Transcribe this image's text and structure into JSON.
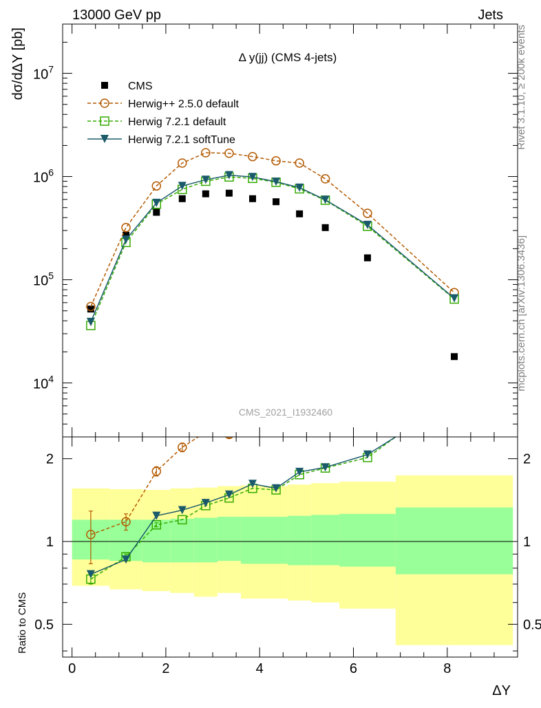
{
  "header": {
    "left_label": "13000 GeV pp",
    "right_label": "Jets"
  },
  "side_labels": {
    "rivet": "Rivet 3.1.10, ≥ 200k events",
    "source": "mcplots.cern.ch [arXiv:1306.3436]"
  },
  "chart_data": [
    {
      "type": "scatter",
      "panel": "main",
      "title": "Δ y(jj) (CMS 4-jets)",
      "watermark": "CMS_2021_I1932460",
      "ylabel": "dσ/dΔY [pb]",
      "xlabel": "",
      "yscale": "log",
      "xlim": [
        -0.2,
        9.5
      ],
      "ylim": [
        3000,
        30000000
      ],
      "y_ticks": [
        {
          "value": 10000,
          "base": "10",
          "exp": "4"
        },
        {
          "value": 100000,
          "base": "10",
          "exp": "5"
        },
        {
          "value": 1000000,
          "base": "10",
          "exp": "6"
        },
        {
          "value": 10000000,
          "base": "10",
          "exp": "7"
        }
      ],
      "legend_position": "top-left",
      "series": [
        {
          "name": "CMS",
          "key": "cms",
          "color": "#000000",
          "marker": "filled-square",
          "line": "none",
          "x": [
            0.4,
            1.15,
            1.8,
            2.35,
            2.85,
            3.35,
            3.85,
            4.35,
            4.85,
            5.4,
            6.3,
            8.15
          ],
          "values": [
            52000,
            270000,
            450000,
            610000,
            680000,
            690000,
            610000,
            570000,
            435000,
            320000,
            163000,
            18000
          ]
        },
        {
          "name": "Herwig++ 2.5.0 default",
          "key": "herwigpp",
          "color": "#b35900",
          "marker": "open-circle",
          "line": "dashed",
          "x": [
            0.4,
            1.15,
            1.8,
            2.35,
            2.85,
            3.35,
            3.85,
            4.35,
            4.85,
            5.4,
            6.3,
            8.15
          ],
          "values": [
            55000,
            320000,
            810000,
            1350000,
            1700000,
            1680000,
            1560000,
            1420000,
            1350000,
            950000,
            440000,
            75000
          ]
        },
        {
          "name": "Herwig 7.2.1 default",
          "key": "herwig7",
          "color": "#33aa00",
          "marker": "open-square",
          "line": "dashed",
          "x": [
            0.4,
            1.15,
            1.8,
            2.35,
            2.85,
            3.35,
            3.85,
            4.35,
            4.85,
            5.4,
            6.3,
            8.15
          ],
          "values": [
            36000,
            230000,
            540000,
            750000,
            900000,
            990000,
            960000,
            880000,
            760000,
            590000,
            330000,
            65000
          ]
        },
        {
          "name": "Herwig 7.2.1 softTune",
          "key": "softtune",
          "color": "#1a5a6a",
          "marker": "filled-triangle-down",
          "line": "solid",
          "x": [
            0.4,
            1.15,
            1.8,
            2.35,
            2.85,
            3.35,
            3.85,
            4.35,
            4.85,
            5.4,
            6.3,
            8.15
          ],
          "values": [
            39000,
            245000,
            555000,
            810000,
            930000,
            1030000,
            990000,
            890000,
            780000,
            595000,
            340000,
            66000
          ]
        }
      ]
    },
    {
      "type": "line",
      "panel": "ratio",
      "ylabel": "Ratio to CMS",
      "xlabel": "ΔY",
      "yscale": "log",
      "xlim": [
        -0.2,
        9.5
      ],
      "ylim": [
        0.38,
        2.4
      ],
      "x_ticks": [
        0,
        2,
        4,
        6,
        8
      ],
      "y_ticks": [
        {
          "value": 0.5,
          "label": "0.5"
        },
        {
          "value": 1,
          "label": "1"
        },
        {
          "value": 2,
          "label": "2"
        }
      ],
      "reference_line": 1,
      "uncertainty_bands": {
        "x_edges": [
          0.0,
          0.8,
          1.5,
          2.1,
          2.6,
          3.1,
          3.6,
          4.1,
          4.6,
          5.1,
          5.7,
          6.9,
          9.4
        ],
        "outer_color": "#ffff99",
        "inner_color": "#99ff99",
        "outer_low": [
          0.69,
          0.67,
          0.66,
          0.65,
          0.63,
          0.65,
          0.62,
          0.62,
          0.61,
          0.6,
          0.57,
          0.42
        ],
        "outer_high": [
          1.56,
          1.55,
          1.54,
          1.56,
          1.57,
          1.59,
          1.6,
          1.59,
          1.61,
          1.63,
          1.65,
          1.74
        ],
        "inner_low": [
          0.86,
          0.85,
          0.84,
          0.84,
          0.84,
          0.85,
          0.83,
          0.83,
          0.82,
          0.82,
          0.81,
          0.76
        ],
        "inner_high": [
          1.2,
          1.2,
          1.2,
          1.21,
          1.22,
          1.23,
          1.23,
          1.23,
          1.24,
          1.25,
          1.26,
          1.33
        ]
      },
      "series": [
        {
          "name": "Herwig++ 2.5.0 default",
          "key": "herwigpp",
          "color": "#b35900",
          "marker": "open-circle",
          "line": "dashed",
          "x": [
            0.4,
            1.15,
            1.8,
            2.35,
            2.85,
            3.35,
            3.85,
            4.35
          ],
          "values": [
            1.06,
            1.18,
            1.8,
            2.2,
            2.5,
            2.45,
            2.55,
            2.49
          ],
          "err": [
            0.23,
            0.08,
            0.07,
            0.08,
            0.0,
            0.07,
            0.0,
            0.07
          ]
        },
        {
          "name": "Herwig 7.2.1 default",
          "key": "herwig7",
          "color": "#33aa00",
          "marker": "open-square",
          "line": "dashed",
          "x": [
            0.4,
            1.15,
            1.8,
            2.35,
            2.85,
            3.35,
            3.85,
            4.35,
            4.85,
            5.4,
            6.3,
            6.9
          ],
          "values": [
            0.73,
            0.88,
            1.15,
            1.2,
            1.35,
            1.44,
            1.56,
            1.54,
            1.75,
            1.85,
            2.02,
            2.4
          ],
          "err": [
            0.03,
            0.02,
            0.02,
            0.0,
            0.0,
            0.0,
            0.0,
            0.0,
            0.0,
            0.0,
            0.0,
            0.0
          ]
        },
        {
          "name": "Herwig 7.2.1 softTune",
          "key": "softtune",
          "color": "#1a5a6a",
          "marker": "filled-triangle-down",
          "line": "solid",
          "x": [
            0.4,
            1.15,
            1.8,
            2.35,
            2.85,
            3.35,
            3.85,
            4.35,
            4.85,
            5.4,
            6.3,
            6.9
          ],
          "values": [
            0.76,
            0.86,
            1.24,
            1.3,
            1.38,
            1.48,
            1.62,
            1.56,
            1.79,
            1.86,
            2.07,
            2.4
          ],
          "err": [
            0,
            0,
            0,
            0,
            0,
            0,
            0,
            0,
            0,
            0,
            0,
            0
          ]
        }
      ]
    }
  ]
}
